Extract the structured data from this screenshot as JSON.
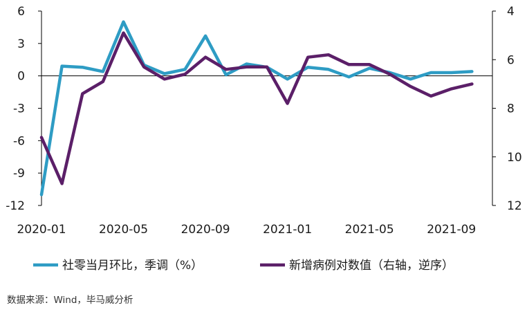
{
  "chart_data": {
    "type": "line",
    "title": "",
    "x": [
      "2020-01",
      "2020-02",
      "2020-03",
      "2020-04",
      "2020-05",
      "2020-06",
      "2020-07",
      "2020-08",
      "2020-09",
      "2020-10",
      "2020-11",
      "2020-12",
      "2021-01",
      "2021-02",
      "2021-03",
      "2021-04",
      "2021-05",
      "2021-06",
      "2021-07",
      "2021-08",
      "2021-09",
      "2021-10"
    ],
    "x_tick_labels": [
      "2020-01",
      "2020-05",
      "2020-09",
      "2021-01",
      "2021-05",
      "2021-09"
    ],
    "x_tick_index": [
      0,
      4,
      8,
      12,
      16,
      20
    ],
    "left_axis": {
      "ylim": [
        -12,
        6
      ],
      "ticks": [
        "6",
        "3",
        "0",
        "-3",
        "-6",
        "-9",
        "-12"
      ],
      "tick_values": [
        6,
        3,
        0,
        -3,
        -6,
        -9,
        -12
      ]
    },
    "right_axis": {
      "ylim": [
        4,
        12
      ],
      "inverted": true,
      "ticks": [
        "4",
        "6",
        "8",
        "10",
        "12"
      ],
      "tick_values": [
        4,
        6,
        8,
        10,
        12
      ]
    },
    "series": [
      {
        "name": "社零当月环比，季调（%）",
        "axis": "left",
        "color": "#2e9cc4",
        "values": [
          -11.0,
          0.9,
          0.8,
          0.4,
          5.0,
          1.0,
          0.2,
          0.6,
          3.7,
          0.1,
          1.1,
          0.8,
          -0.3,
          0.8,
          0.6,
          -0.1,
          0.7,
          0.3,
          -0.3,
          0.3,
          0.3,
          0.4
        ]
      },
      {
        "name": "新增病例对数值（右轴，逆序）",
        "axis": "right",
        "color": "#5b1f68",
        "values": [
          9.2,
          11.1,
          7.4,
          6.9,
          4.9,
          6.3,
          6.8,
          6.6,
          5.9,
          6.4,
          6.3,
          6.3,
          7.8,
          5.9,
          5.8,
          6.2,
          6.2,
          6.6,
          7.1,
          7.5,
          7.2,
          7.0
        ]
      }
    ],
    "legend_position": "bottom",
    "grid": false
  },
  "source_note": "数据来源：Wind，毕马威分析"
}
